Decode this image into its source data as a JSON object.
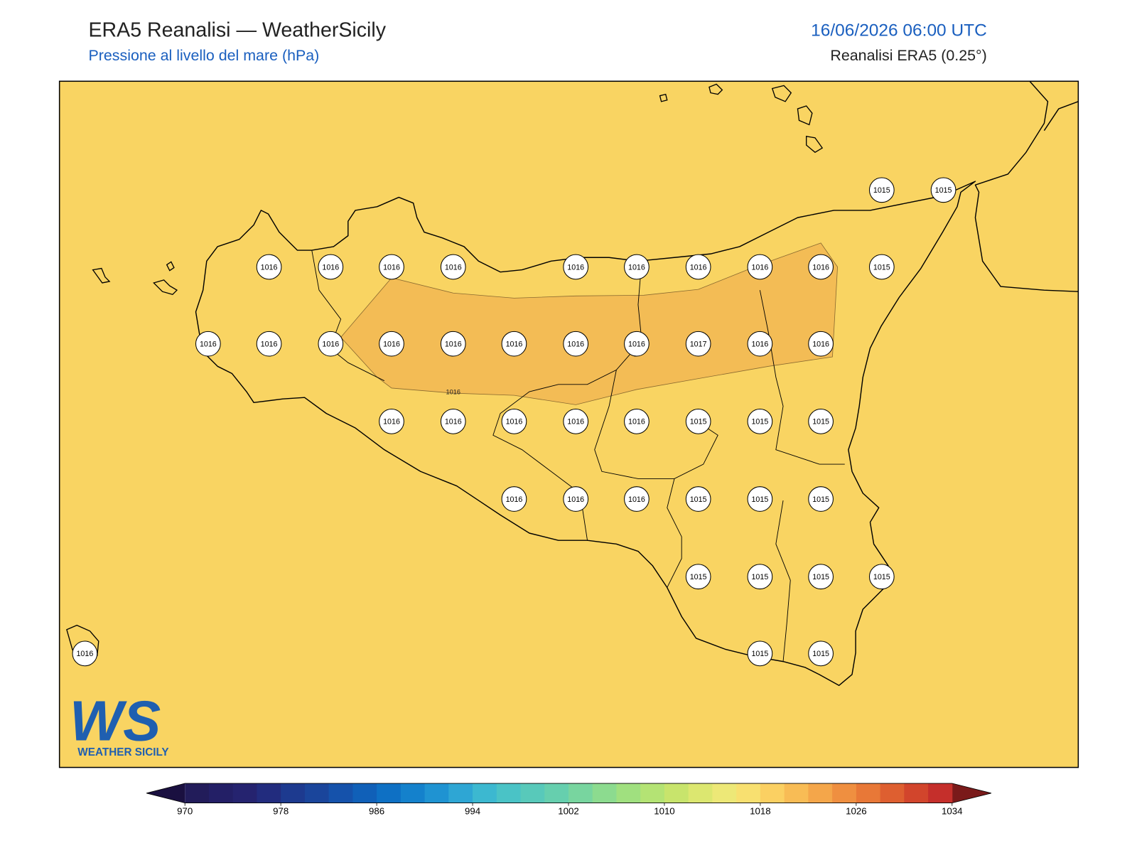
{
  "header": {
    "title": "ERA5 Reanalisi — WeatherSicily",
    "subtitle": "Pressione al livello del mare (hPa)",
    "datetime": "16/06/2026 06:00 UTC",
    "source": "Reanalisi ERA5 (0.25°)"
  },
  "stations": [
    1015,
    1015,
    1016,
    1016,
    1016,
    1016,
    1016,
    1016,
    1016,
    1016,
    1016,
    1015,
    1016,
    1016,
    1016,
    1016,
    1016,
    1016,
    1016,
    1016,
    1017,
    1016,
    1016,
    1016,
    1016,
    1016,
    1016,
    1016,
    1015,
    1015,
    1015,
    1016,
    1016,
    1016,
    1015,
    1015,
    1015,
    1015,
    1015,
    1015,
    1015,
    1016,
    1015,
    1015
  ],
  "contour_label": "1016",
  "logo": {
    "mark": "WS",
    "caption": "WEATHER SICILY"
  },
  "colorbar": {
    "range": [
      970,
      1034
    ],
    "step": 2,
    "ticks": [
      970,
      978,
      986,
      994,
      1002,
      1010,
      1018,
      1026,
      1034
    ],
    "under": "#1a1040",
    "over": "#7a1a1a",
    "colors": [
      "#221c5a",
      "#231f66",
      "#25236f",
      "#222c7e",
      "#1d3a8f",
      "#1a459b",
      "#1552ab",
      "#1060b8",
      "#0e70c4",
      "#1481cc",
      "#1f93d2",
      "#2ea6d4",
      "#3cb8d0",
      "#4ac3c6",
      "#58c9ba",
      "#66cfae",
      "#78d59f",
      "#8cdb8f",
      "#a0e07f",
      "#b4e374",
      "#c8e46c",
      "#dce770",
      "#ede877",
      "#f8e070",
      "#fbd062",
      "#f8bc55",
      "#f4a64a",
      "#ef8f40",
      "#e87837",
      "#de5f30",
      "#d2452c",
      "#c52f2b"
    ]
  }
}
